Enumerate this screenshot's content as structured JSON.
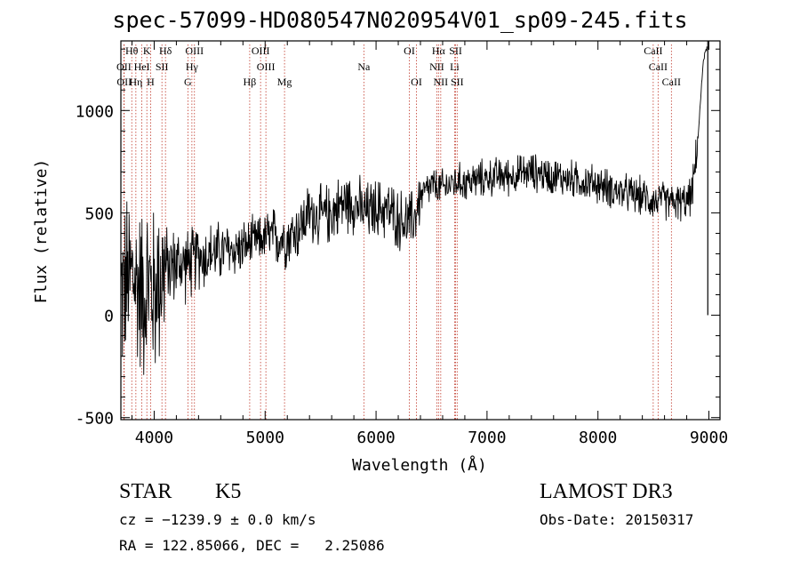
{
  "header": {
    "title": "spec-57099-HD080547N020954V01_sp09-245.fits"
  },
  "info": {
    "class_label": "STAR",
    "subclass": "K5",
    "survey": "LAMOST DR3",
    "cz": "cz = −1239.9 ± 0.0 km/s",
    "obs_date": "Obs-Date: 20150317",
    "radec": "RA = 122.85066, DEC =   2.25086"
  },
  "chart_data": {
    "type": "line",
    "title": "spec-57099-HD080547N020954V01_sp09-245.fits",
    "xlabel": "Wavelength (Å)",
    "ylabel": "Flux (relative)",
    "xlim": [
      3700,
      9100
    ],
    "ylim": [
      -510,
      1340
    ],
    "xticks": [
      4000,
      5000,
      6000,
      7000,
      8000,
      9000
    ],
    "yticks": [
      -500,
      0,
      500,
      1000
    ],
    "grid": false,
    "series": [
      {
        "name": "flux",
        "color": "#000000",
        "x": [
          3700,
          3750,
          3800,
          3850,
          3900,
          3950,
          4000,
          4050,
          4100,
          4150,
          4200,
          4250,
          4300,
          4350,
          4400,
          4450,
          4500,
          4600,
          4700,
          4800,
          4900,
          5000,
          5100,
          5200,
          5300,
          5400,
          5500,
          5600,
          5700,
          5800,
          5900,
          6000,
          6100,
          6200,
          6300,
          6350,
          6400,
          6500,
          6600,
          6700,
          6800,
          6900,
          7000,
          7100,
          7200,
          7300,
          7400,
          7500,
          7600,
          7700,
          7800,
          7900,
          8000,
          8100,
          8200,
          8300,
          8400,
          8500,
          8600,
          8700,
          8800,
          8850,
          8900,
          8950,
          9000
        ],
        "y": [
          100,
          150,
          200,
          150,
          120,
          150,
          100,
          200,
          230,
          240,
          250,
          250,
          250,
          260,
          300,
          280,
          300,
          310,
          320,
          330,
          360,
          380,
          380,
          380,
          420,
          500,
          480,
          500,
          550,
          550,
          500,
          520,
          520,
          470,
          450,
          480,
          580,
          630,
          620,
          650,
          650,
          660,
          670,
          680,
          680,
          690,
          700,
          690,
          680,
          670,
          660,
          650,
          640,
          620,
          600,
          590,
          580,
          560,
          560,
          550,
          550,
          600,
          850,
          1250,
          1340
        ]
      }
    ],
    "noise_amplitude_blue_end": 350,
    "noise_amplitude_red_end": 45,
    "emission_lines": [
      {
        "label": "Hθ",
        "wavelength": 3798,
        "row": 1
      },
      {
        "label": "K",
        "wavelength": 3934,
        "row": 1
      },
      {
        "label": "Hδ",
        "wavelength": 4102,
        "row": 1
      },
      {
        "label": "OIII",
        "wavelength": 4363,
        "row": 1
      },
      {
        "label": "OIII",
        "wavelength": 4959,
        "row": 1
      },
      {
        "label": "OI",
        "wavelength": 6300,
        "row": 1
      },
      {
        "label": "Hα",
        "wavelength": 6563,
        "row": 1
      },
      {
        "label": "SII",
        "wavelength": 6717,
        "row": 1
      },
      {
        "label": "CaII",
        "wavelength": 8498,
        "row": 1
      },
      {
        "label": "OII",
        "wavelength": 3727,
        "row": 2
      },
      {
        "label": "HeI",
        "wavelength": 3889,
        "row": 2
      },
      {
        "label": "SII",
        "wavelength": 4070,
        "row": 2
      },
      {
        "label": "Hγ",
        "wavelength": 4340,
        "row": 2
      },
      {
        "label": "OIII",
        "wavelength": 5007,
        "row": 2
      },
      {
        "label": "Na",
        "wavelength": 5890,
        "row": 2
      },
      {
        "label": "NII",
        "wavelength": 6548,
        "row": 2
      },
      {
        "label": "Li",
        "wavelength": 6708,
        "row": 2
      },
      {
        "label": "CaII",
        "wavelength": 8542,
        "row": 2
      },
      {
        "label": "OII",
        "wavelength": 3730,
        "row": 3
      },
      {
        "label": "Hη",
        "wavelength": 3835,
        "row": 3
      },
      {
        "label": "H",
        "wavelength": 3968,
        "row": 3
      },
      {
        "label": "G",
        "wavelength": 4304,
        "row": 3
      },
      {
        "label": "Hβ",
        "wavelength": 4861,
        "row": 3
      },
      {
        "label": "Mg",
        "wavelength": 5175,
        "row": 3
      },
      {
        "label": "OI",
        "wavelength": 6364,
        "row": 3
      },
      {
        "label": "NII",
        "wavelength": 6583,
        "row": 3
      },
      {
        "label": "SII",
        "wavelength": 6731,
        "row": 3
      },
      {
        "label": "CaII",
        "wavelength": 8662,
        "row": 3
      }
    ]
  }
}
